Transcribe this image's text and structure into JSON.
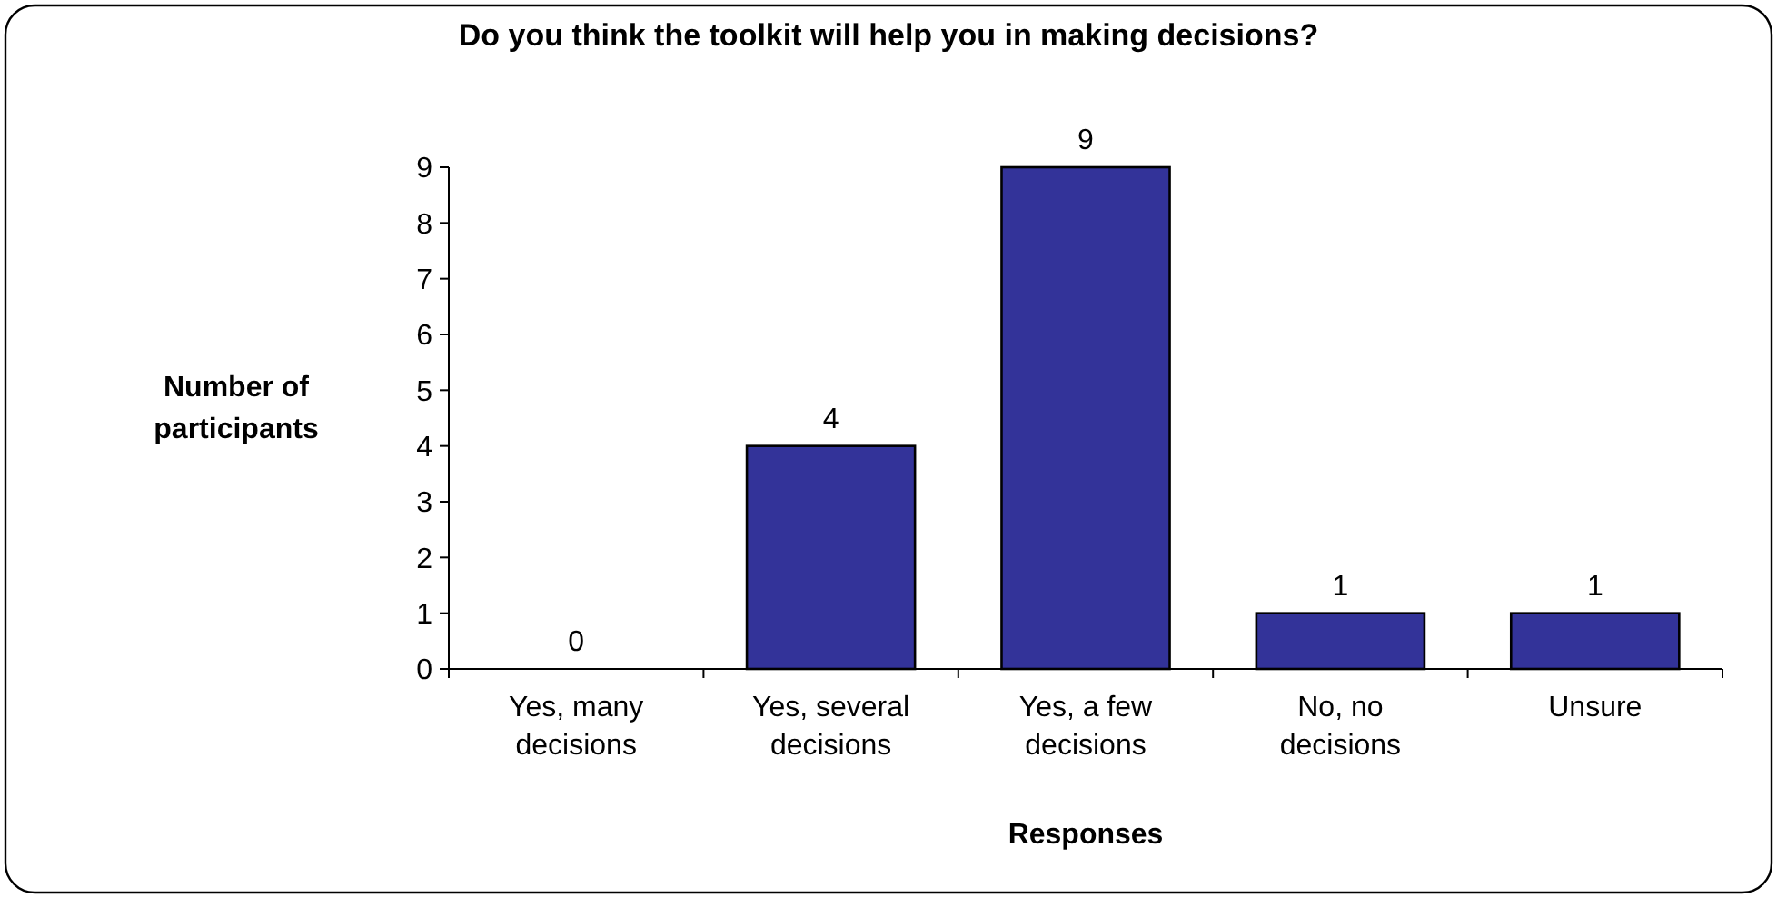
{
  "chart_data": {
    "type": "bar",
    "title": "Do you think the toolkit will help you in making decisions?",
    "xlabel": "Responses",
    "ylabel": "Number of participants",
    "categories": [
      "Yes, many decisions",
      "Yes, several decisions",
      "Yes, a few decisions",
      "No, no decisions",
      "Unsure"
    ],
    "values": [
      0,
      4,
      9,
      1,
      1
    ],
    "color": "#333399",
    "ylim": [
      0,
      9
    ],
    "yticks": [
      0,
      1,
      2,
      3,
      4,
      5,
      6,
      7,
      8,
      9
    ],
    "data_labels": true,
    "grid": false
  }
}
